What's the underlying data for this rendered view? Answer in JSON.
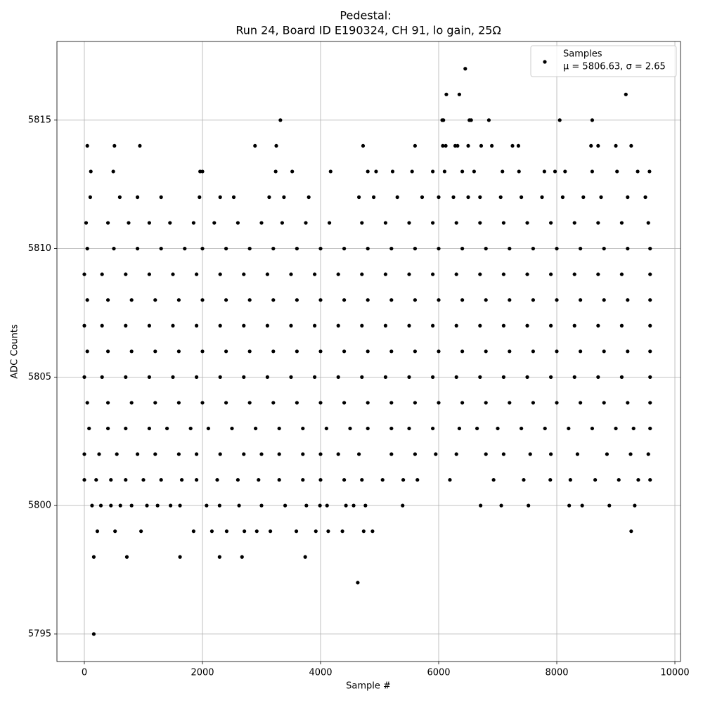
{
  "chart_data": {
    "type": "scatter",
    "title": "Pedestal:",
    "subtitle": "Run 24, Board ID E190324, CH 91, lo gain, 25Ω",
    "x_label": "Sample #",
    "y_label": "ADC Counts",
    "xlim": [
      -464,
      10095
    ],
    "ylim": [
      5793.93,
      5818.06
    ],
    "xticks": [
      0,
      2000,
      4000,
      6000,
      8000,
      10000
    ],
    "yticks": [
      5795,
      5800,
      5805,
      5810,
      5815
    ],
    "grid": true,
    "legend": "upper right",
    "legend_note": "μ = 5806.63, σ = 2.65",
    "x": [
      160,
      4630,
      160,
      720,
      1620,
      2290,
      2670,
      3740,
      220,
      520,
      960,
      1850,
      2160,
      2410,
      2710,
      2920,
      3150,
      3590,
      3920,
      4130,
      4370,
      4730,
      4880,
      9260,
      130,
      280,
      450,
      610,
      800,
      1060,
      1240,
      1460,
      1620,
      2070,
      2290,
      2620,
      3000,
      3400,
      3760,
      3990,
      4110,
      4430,
      4560,
      4760,
      5390,
      6710,
      7060,
      7520,
      8210,
      8430,
      8890,
      9320,
      0,
      200,
      450,
      700,
      1000,
      1300,
      1650,
      1900,
      2250,
      2600,
      2950,
      3300,
      3700,
      4000,
      4400,
      4700,
      5050,
      5400,
      5640,
      6190,
      6930,
      7440,
      7890,
      8230,
      8650,
      9050,
      9380,
      9580,
      0,
      250,
      550,
      900,
      1200,
      1600,
      1900,
      2300,
      2700,
      3000,
      3300,
      3700,
      4000,
      4300,
      4650,
      5200,
      5600,
      5950,
      6300,
      6800,
      7100,
      7550,
      7900,
      8350,
      8850,
      9250,
      9550,
      80,
      400,
      700,
      1100,
      1400,
      1800,
      2100,
      2500,
      2900,
      3300,
      3700,
      4100,
      4500,
      4800,
      5200,
      5500,
      5900,
      6350,
      6650,
      7000,
      7400,
      7800,
      8200,
      8600,
      9000,
      9300,
      9580,
      50,
      400,
      800,
      1200,
      1600,
      2000,
      2400,
      2800,
      3200,
      3600,
      4000,
      4400,
      4800,
      5200,
      5600,
      6000,
      6400,
      6800,
      7200,
      7600,
      8000,
      8400,
      8800,
      9200,
      9580,
      0,
      300,
      700,
      1100,
      1500,
      1900,
      2300,
      2700,
      3100,
      3500,
      3900,
      4300,
      4700,
      5100,
      5500,
      5900,
      6300,
      6700,
      7100,
      7500,
      7900,
      8300,
      8700,
      9100,
      9580,
      50,
      400,
      800,
      1200,
      1600,
      2000,
      2400,
      2800,
      3200,
      3600,
      4000,
      4400,
      4800,
      5200,
      5600,
      6000,
      6400,
      6800,
      7200,
      7600,
      8000,
      8400,
      8800,
      9200,
      9580,
      0,
      300,
      700,
      1100,
      1500,
      1900,
      2300,
      2700,
      3100,
      3500,
      3900,
      4300,
      4700,
      5100,
      5500,
      5900,
      6300,
      6700,
      7100,
      7500,
      7900,
      8300,
      8700,
      9100,
      9580,
      50,
      400,
      800,
      1200,
      1600,
      2000,
      2400,
      2800,
      3200,
      3600,
      4000,
      4400,
      4800,
      5200,
      5600,
      6000,
      6400,
      6800,
      7200,
      7600,
      8000,
      8400,
      8800,
      9200,
      9580,
      0,
      300,
      700,
      1100,
      1500,
      1900,
      2300,
      2700,
      3100,
      3500,
      3900,
      4300,
      4700,
      5100,
      5500,
      5900,
      6300,
      6700,
      7100,
      7500,
      7900,
      8300,
      8700,
      9100,
      9580,
      50,
      500,
      900,
      1300,
      1700,
      2000,
      2400,
      2800,
      3200,
      3600,
      4000,
      4400,
      4800,
      5200,
      5600,
      6000,
      6400,
      6800,
      7200,
      7600,
      8000,
      8400,
      8800,
      9200,
      9580,
      30,
      400,
      750,
      1100,
      1450,
      1850,
      2200,
      2600,
      3000,
      3350,
      3750,
      4150,
      4700,
      5100,
      5500,
      5900,
      6300,
      6700,
      7100,
      7500,
      7900,
      8300,
      8700,
      9100,
      9550,
      100,
      600,
      900,
      1300,
      1950,
      2300,
      2530,
      3130,
      3380,
      3800,
      4650,
      4900,
      5300,
      5720,
      6000,
      6250,
      6500,
      6700,
      7050,
      7400,
      7750,
      8100,
      8450,
      8750,
      9200,
      9500,
      110,
      490,
      1960,
      2000,
      3240,
      3520,
      4170,
      4800,
      4940,
      5220,
      5550,
      5900,
      6100,
      6400,
      6600,
      7080,
      7360,
      7790,
      7970,
      8140,
      8600,
      9020,
      9370,
      9570,
      50,
      510,
      940,
      2890,
      3250,
      4720,
      5600,
      6070,
      6120,
      6280,
      6320,
      6500,
      6720,
      6900,
      7250,
      7350,
      8580,
      8700,
      9000,
      9260,
      3320,
      6060,
      6080,
      6520,
      6550,
      6850,
      8050,
      8600,
      6130,
      6350,
      9170,
      6450
    ],
    "series": [
      {
        "name": "Samples",
        "color": "#000000",
        "values": [
          5795,
          5797,
          5798,
          5798,
          5798,
          5798,
          5798,
          5798,
          5799,
          5799,
          5799,
          5799,
          5799,
          5799,
          5799,
          5799,
          5799,
          5799,
          5799,
          5799,
          5799,
          5799,
          5799,
          5799,
          5800,
          5800,
          5800,
          5800,
          5800,
          5800,
          5800,
          5800,
          5800,
          5800,
          5800,
          5800,
          5800,
          5800,
          5800,
          5800,
          5800,
          5800,
          5800,
          5800,
          5800,
          5800,
          5800,
          5800,
          5800,
          5800,
          5800,
          5800,
          5801,
          5801,
          5801,
          5801,
          5801,
          5801,
          5801,
          5801,
          5801,
          5801,
          5801,
          5801,
          5801,
          5801,
          5801,
          5801,
          5801,
          5801,
          5801,
          5801,
          5801,
          5801,
          5801,
          5801,
          5801,
          5801,
          5801,
          5801,
          5802,
          5802,
          5802,
          5802,
          5802,
          5802,
          5802,
          5802,
          5802,
          5802,
          5802,
          5802,
          5802,
          5802,
          5802,
          5802,
          5802,
          5802,
          5802,
          5802,
          5802,
          5802,
          5802,
          5802,
          5802,
          5802,
          5802,
          5803,
          5803,
          5803,
          5803,
          5803,
          5803,
          5803,
          5803,
          5803,
          5803,
          5803,
          5803,
          5803,
          5803,
          5803,
          5803,
          5803,
          5803,
          5803,
          5803,
          5803,
          5803,
          5803,
          5803,
          5803,
          5803,
          5803,
          5804,
          5804,
          5804,
          5804,
          5804,
          5804,
          5804,
          5804,
          5804,
          5804,
          5804,
          5804,
          5804,
          5804,
          5804,
          5804,
          5804,
          5804,
          5804,
          5804,
          5804,
          5804,
          5804,
          5804,
          5804,
          5805,
          5805,
          5805,
          5805,
          5805,
          5805,
          5805,
          5805,
          5805,
          5805,
          5805,
          5805,
          5805,
          5805,
          5805,
          5805,
          5805,
          5805,
          5805,
          5805,
          5805,
          5805,
          5805,
          5805,
          5805,
          5806,
          5806,
          5806,
          5806,
          5806,
          5806,
          5806,
          5806,
          5806,
          5806,
          5806,
          5806,
          5806,
          5806,
          5806,
          5806,
          5806,
          5806,
          5806,
          5806,
          5806,
          5806,
          5806,
          5806,
          5806,
          5807,
          5807,
          5807,
          5807,
          5807,
          5807,
          5807,
          5807,
          5807,
          5807,
          5807,
          5807,
          5807,
          5807,
          5807,
          5807,
          5807,
          5807,
          5807,
          5807,
          5807,
          5807,
          5807,
          5807,
          5807,
          5808,
          5808,
          5808,
          5808,
          5808,
          5808,
          5808,
          5808,
          5808,
          5808,
          5808,
          5808,
          5808,
          5808,
          5808,
          5808,
          5808,
          5808,
          5808,
          5808,
          5808,
          5808,
          5808,
          5808,
          5808,
          5809,
          5809,
          5809,
          5809,
          5809,
          5809,
          5809,
          5809,
          5809,
          5809,
          5809,
          5809,
          5809,
          5809,
          5809,
          5809,
          5809,
          5809,
          5809,
          5809,
          5809,
          5809,
          5809,
          5809,
          5809,
          5810,
          5810,
          5810,
          5810,
          5810,
          5810,
          5810,
          5810,
          5810,
          5810,
          5810,
          5810,
          5810,
          5810,
          5810,
          5810,
          5810,
          5810,
          5810,
          5810,
          5810,
          5810,
          5810,
          5810,
          5810,
          5811,
          5811,
          5811,
          5811,
          5811,
          5811,
          5811,
          5811,
          5811,
          5811,
          5811,
          5811,
          5811,
          5811,
          5811,
          5811,
          5811,
          5811,
          5811,
          5811,
          5811,
          5811,
          5811,
          5811,
          5811,
          5812,
          5812,
          5812,
          5812,
          5812,
          5812,
          5812,
          5812,
          5812,
          5812,
          5812,
          5812,
          5812,
          5812,
          5812,
          5812,
          5812,
          5812,
          5812,
          5812,
          5812,
          5812,
          5812,
          5812,
          5812,
          5812,
          5813,
          5813,
          5813,
          5813,
          5813,
          5813,
          5813,
          5813,
          5813,
          5813,
          5813,
          5813,
          5813,
          5813,
          5813,
          5813,
          5813,
          5813,
          5813,
          5813,
          5813,
          5813,
          5813,
          5813,
          5814,
          5814,
          5814,
          5814,
          5814,
          5814,
          5814,
          5814,
          5814,
          5814,
          5814,
          5814,
          5814,
          5814,
          5814,
          5814,
          5814,
          5814,
          5814,
          5814,
          5815,
          5815,
          5815,
          5815,
          5815,
          5815,
          5815,
          5815,
          5816,
          5816,
          5816,
          5817
        ]
      }
    ]
  }
}
